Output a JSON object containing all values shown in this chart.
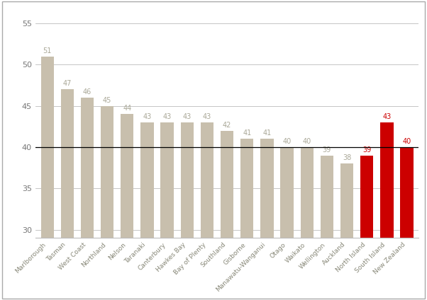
{
  "categories": [
    "Marlborough",
    "Tasman",
    "West Coast",
    "Northland",
    "Nelson",
    "Taranaki",
    "Canterbury",
    "Hawkes Bay",
    "Bay of Plenty",
    "Southland",
    "Gisborne",
    "Manawatu-Wanganui",
    "Otago",
    "Waikato",
    "Wellington",
    "Auckland",
    "North Island",
    "South Island",
    "New Zealand"
  ],
  "values": [
    51,
    47,
    46,
    45,
    44,
    43,
    43,
    43,
    43,
    42,
    41,
    41,
    40,
    40,
    39,
    38,
    39,
    43,
    40
  ],
  "bar_colors": [
    "#c8bfad",
    "#c8bfad",
    "#c8bfad",
    "#c8bfad",
    "#c8bfad",
    "#c8bfad",
    "#c8bfad",
    "#c8bfad",
    "#c8bfad",
    "#c8bfad",
    "#c8bfad",
    "#c8bfad",
    "#c8bfad",
    "#c8bfad",
    "#c8bfad",
    "#c8bfad",
    "#cc0000",
    "#cc0000",
    "#cc0000"
  ],
  "ylim": [
    29,
    57
  ],
  "yticks": [
    30,
    35,
    40,
    45,
    50,
    55
  ],
  "grid_color": "#bbbbbb",
  "bar_width": 0.65,
  "label_color_tan": "#aaa898",
  "label_color_red": "#cc0000",
  "background_color": "#ffffff",
  "border_color": "#aaaaaa",
  "horizontal_line_y": 40,
  "horizontal_line_color": "#000000",
  "ytick_color": "#777777",
  "xtick_color": "#888878",
  "ytick_fontsize": 8,
  "xtick_fontsize": 6.5,
  "value_label_fontsize": 7
}
